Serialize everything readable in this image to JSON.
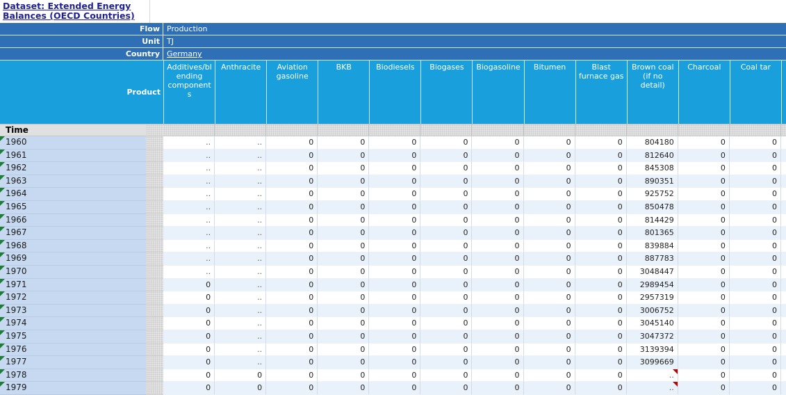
{
  "header": {
    "dataset_link": "Dataset: Extended Energy Balances (OECD Countries)"
  },
  "filters": [
    {
      "label": "Flow",
      "value": "Production"
    },
    {
      "label": "Unit",
      "value": "TJ"
    },
    {
      "label": "Country",
      "value": "Germany"
    }
  ],
  "table": {
    "product_label": "Product",
    "time_label": "Time",
    "columns": [
      "Additives/blending components",
      "Anthracite",
      "Aviation gasoline",
      "BKB",
      "Biodiesels",
      "Biogases",
      "Biogasoline",
      "Bitumen",
      "Blast furnace gas",
      "Brown coal (if no detail)",
      "Charcoal",
      "Coal tar"
    ],
    "rows": [
      {
        "year": "1960",
        "values": [
          "..",
          "..",
          "0",
          "0",
          "0",
          "0",
          "0",
          "0",
          "0",
          "804180",
          "0",
          "0"
        ]
      },
      {
        "year": "1961",
        "values": [
          "..",
          "..",
          "0",
          "0",
          "0",
          "0",
          "0",
          "0",
          "0",
          "812640",
          "0",
          "0"
        ]
      },
      {
        "year": "1962",
        "values": [
          "..",
          "..",
          "0",
          "0",
          "0",
          "0",
          "0",
          "0",
          "0",
          "845308",
          "0",
          "0"
        ]
      },
      {
        "year": "1963",
        "values": [
          "..",
          "..",
          "0",
          "0",
          "0",
          "0",
          "0",
          "0",
          "0",
          "890351",
          "0",
          "0"
        ]
      },
      {
        "year": "1964",
        "values": [
          "..",
          "..",
          "0",
          "0",
          "0",
          "0",
          "0",
          "0",
          "0",
          "925752",
          "0",
          "0"
        ]
      },
      {
        "year": "1965",
        "values": [
          "..",
          "..",
          "0",
          "0",
          "0",
          "0",
          "0",
          "0",
          "0",
          "850478",
          "0",
          "0"
        ]
      },
      {
        "year": "1966",
        "values": [
          "..",
          "..",
          "0",
          "0",
          "0",
          "0",
          "0",
          "0",
          "0",
          "814429",
          "0",
          "0"
        ]
      },
      {
        "year": "1967",
        "values": [
          "..",
          "..",
          "0",
          "0",
          "0",
          "0",
          "0",
          "0",
          "0",
          "801365",
          "0",
          "0"
        ]
      },
      {
        "year": "1968",
        "values": [
          "..",
          "..",
          "0",
          "0",
          "0",
          "0",
          "0",
          "0",
          "0",
          "839884",
          "0",
          "0"
        ]
      },
      {
        "year": "1969",
        "values": [
          "..",
          "..",
          "0",
          "0",
          "0",
          "0",
          "0",
          "0",
          "0",
          "887783",
          "0",
          "0"
        ]
      },
      {
        "year": "1970",
        "values": [
          "..",
          "..",
          "0",
          "0",
          "0",
          "0",
          "0",
          "0",
          "0",
          "3048447",
          "0",
          "0"
        ]
      },
      {
        "year": "1971",
        "values": [
          "0",
          "..",
          "0",
          "0",
          "0",
          "0",
          "0",
          "0",
          "0",
          "2989454",
          "0",
          "0"
        ]
      },
      {
        "year": "1972",
        "values": [
          "0",
          "..",
          "0",
          "0",
          "0",
          "0",
          "0",
          "0",
          "0",
          "2957319",
          "0",
          "0"
        ]
      },
      {
        "year": "1973",
        "values": [
          "0",
          "..",
          "0",
          "0",
          "0",
          "0",
          "0",
          "0",
          "0",
          "3006752",
          "0",
          "0"
        ]
      },
      {
        "year": "1974",
        "values": [
          "0",
          "..",
          "0",
          "0",
          "0",
          "0",
          "0",
          "0",
          "0",
          "3045140",
          "0",
          "0"
        ]
      },
      {
        "year": "1975",
        "values": [
          "0",
          "..",
          "0",
          "0",
          "0",
          "0",
          "0",
          "0",
          "0",
          "3047372",
          "0",
          "0"
        ]
      },
      {
        "year": "1976",
        "values": [
          "0",
          "..",
          "0",
          "0",
          "0",
          "0",
          "0",
          "0",
          "0",
          "3139394",
          "0",
          "0"
        ]
      },
      {
        "year": "1977",
        "values": [
          "0",
          "..",
          "0",
          "0",
          "0",
          "0",
          "0",
          "0",
          "0",
          "3099669",
          "0",
          "0"
        ]
      },
      {
        "year": "1978",
        "values": [
          "0",
          "0",
          "0",
          "0",
          "0",
          "0",
          "0",
          "0",
          "0",
          "..",
          "0",
          "0"
        ],
        "red_flag_col": 9
      },
      {
        "year": "1979",
        "values": [
          "0",
          "0",
          "0",
          "0",
          "0",
          "0",
          "0",
          "0",
          "0",
          "..",
          "0",
          "0"
        ],
        "red_flag_col": 9
      }
    ]
  },
  "colors": {
    "band_blue": "#2e6fb5",
    "header_blue": "#189fdc",
    "year_column_blue": "#c7d9f0",
    "stripe_blue": "#e9f1fb",
    "link_navy": "#1f1f93",
    "green_marker": "#1e7e38",
    "red_marker": "#c00000"
  }
}
